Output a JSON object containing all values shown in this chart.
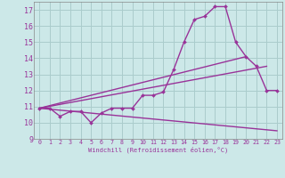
{
  "xlabel": "Windchill (Refroidissement éolien,°C)",
  "bg_color": "#cce8e8",
  "grid_color": "#aacccc",
  "line_color": "#993399",
  "xlim": [
    -0.5,
    23.5
  ],
  "ylim": [
    9,
    17.5
  ],
  "yticks": [
    9,
    10,
    11,
    12,
    13,
    14,
    15,
    16,
    17
  ],
  "xticks": [
    0,
    1,
    2,
    3,
    4,
    5,
    6,
    7,
    8,
    9,
    10,
    11,
    12,
    13,
    14,
    15,
    16,
    17,
    18,
    19,
    20,
    21,
    22,
    23
  ],
  "line1_x": [
    0,
    1,
    2,
    3,
    4,
    5,
    6,
    7,
    8,
    9,
    10,
    11,
    12,
    13,
    14,
    15,
    16,
    17,
    18,
    19,
    20,
    21,
    22,
    23
  ],
  "line1_y": [
    10.9,
    10.9,
    10.4,
    10.7,
    10.7,
    10.0,
    10.6,
    10.9,
    10.9,
    10.9,
    11.7,
    11.7,
    11.9,
    13.3,
    15.0,
    16.4,
    16.6,
    17.2,
    17.2,
    15.0,
    14.1,
    13.5,
    12.0,
    12.0
  ],
  "line2_x": [
    0,
    22
  ],
  "line2_y": [
    10.9,
    13.5
  ],
  "line3_x": [
    0,
    20
  ],
  "line3_y": [
    10.9,
    14.1
  ],
  "line4_x": [
    0,
    23
  ],
  "line4_y": [
    10.9,
    9.5
  ],
  "figsize": [
    3.2,
    2.0
  ],
  "dpi": 100
}
